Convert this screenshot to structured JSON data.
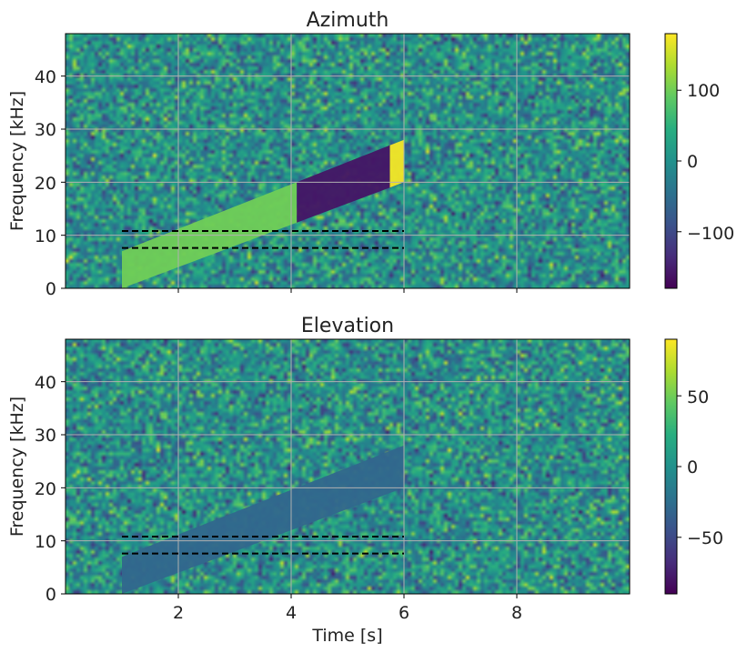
{
  "chart_data": [
    {
      "type": "heatmap",
      "title": "Azimuth",
      "xlabel": "",
      "ylabel": "Frequency [kHz]",
      "xlim": [
        0,
        10
      ],
      "ylim": [
        0,
        48
      ],
      "x_ticks": [
        2,
        4,
        6,
        8
      ],
      "x_tick_labels": [
        "",
        "",
        "",
        ""
      ],
      "y_ticks": [
        0,
        10,
        20,
        30,
        40
      ],
      "y_tick_labels": [
        "0",
        "10",
        "20",
        "30",
        "40"
      ],
      "grid": true,
      "colormap": "viridis",
      "colorbar": {
        "range": [
          -180,
          180
        ],
        "ticks": [
          -100,
          0,
          100
        ],
        "tick_labels": [
          "−100",
          "0",
          "100"
        ]
      },
      "background": "random noise, values spread over full range (teal on average)",
      "chirp": {
        "t_start": 1.0,
        "t_end": 6.0,
        "f_low_start": 0.0,
        "f_high_start": 7.0,
        "f_low_end": 20.0,
        "f_high_end": 28.0
      },
      "chirp_segments": [
        {
          "t_from": 1.0,
          "t_to": 4.1,
          "value": 100
        },
        {
          "t_from": 4.1,
          "t_to": 5.75,
          "value": -160
        },
        {
          "t_from": 5.75,
          "t_to": 6.0,
          "value": 175
        }
      ],
      "hlines": [
        {
          "y": 10.8,
          "x_from": 1.0,
          "x_to": 6.0,
          "style": "dashed",
          "color": "#000000"
        },
        {
          "y": 7.6,
          "x_from": 1.0,
          "x_to": 6.0,
          "style": "dashed",
          "color": "#000000"
        }
      ]
    },
    {
      "type": "heatmap",
      "title": "Elevation",
      "xlabel": "Time [s]",
      "ylabel": "Frequency [kHz]",
      "xlim": [
        0,
        10
      ],
      "ylim": [
        0,
        48
      ],
      "x_ticks": [
        2,
        4,
        6,
        8
      ],
      "x_tick_labels": [
        "2",
        "4",
        "6",
        "8"
      ],
      "y_ticks": [
        0,
        10,
        20,
        30,
        40
      ],
      "y_tick_labels": [
        "0",
        "10",
        "20",
        "30",
        "40"
      ],
      "grid": true,
      "colormap": "viridis",
      "colorbar": {
        "range": [
          -90,
          90
        ],
        "ticks": [
          -50,
          0,
          50
        ],
        "tick_labels": [
          "−50",
          "0",
          "50"
        ]
      },
      "background": "random noise, values spread over full range (teal on average)",
      "chirp": {
        "t_start": 1.0,
        "t_end": 6.0,
        "f_low_start": 0.0,
        "f_high_start": 7.0,
        "f_low_end": 20.0,
        "f_high_end": 28.0
      },
      "chirp_segments": [
        {
          "t_from": 1.0,
          "t_to": 6.0,
          "value": -30
        }
      ],
      "hlines": [
        {
          "y": 10.8,
          "x_from": 1.0,
          "x_to": 6.0,
          "style": "dashed",
          "color": "#000000"
        },
        {
          "y": 7.6,
          "x_from": 1.0,
          "x_to": 6.0,
          "style": "dashed",
          "color": "#000000"
        }
      ]
    }
  ]
}
